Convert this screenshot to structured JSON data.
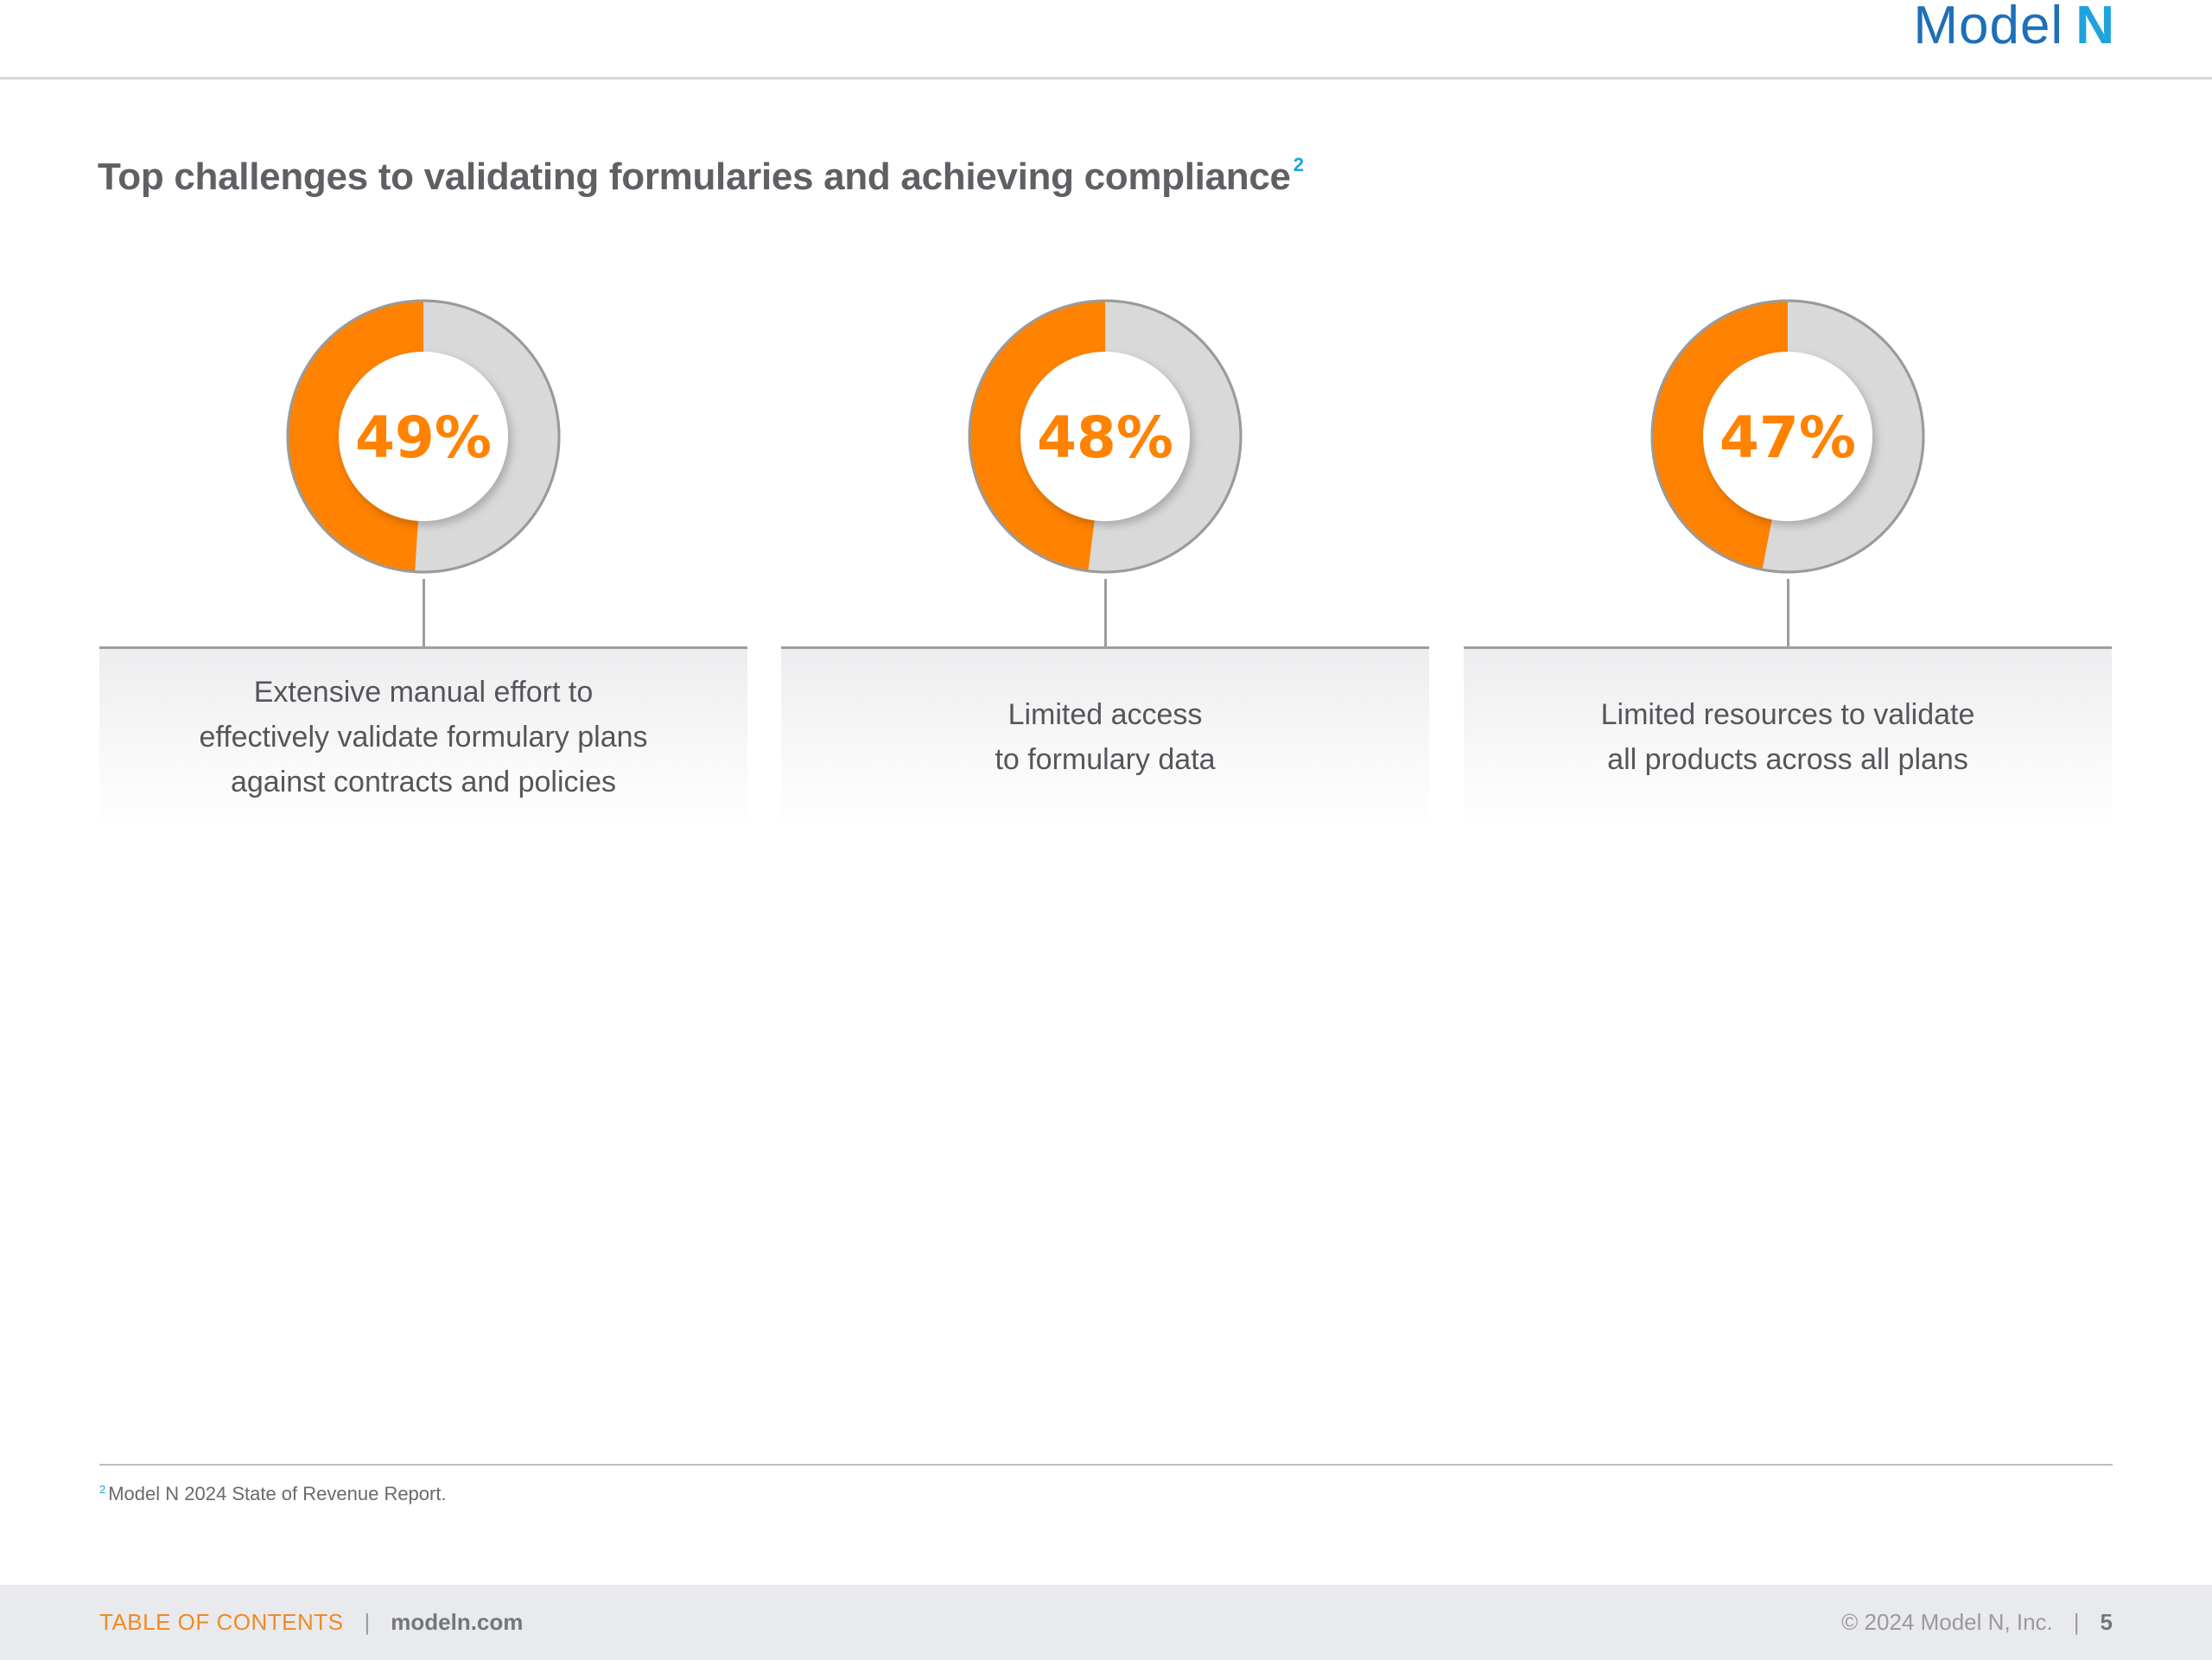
{
  "header": {
    "logo_text": "Model",
    "logo_mark": "N"
  },
  "title": {
    "text": "Top challenges to validating formularies and achieving compliance",
    "footnote_ref": "2"
  },
  "colors": {
    "accent": "#ff8200",
    "track": "#d9d9d9",
    "brand_blue": "#1d6fb8"
  },
  "chart_data": [
    {
      "type": "pie",
      "value": 49,
      "label": "49%",
      "caption": "Extensive manual effort to\neffectively validate formulary plans\nagainst contracts and policies"
    },
    {
      "type": "pie",
      "value": 48,
      "label": "48%",
      "caption": "Limited access\nto formulary data"
    },
    {
      "type": "pie",
      "value": 47,
      "label": "47%",
      "caption": "Limited resources to validate\nall products across all plans"
    }
  ],
  "footnote": {
    "ref": "2",
    "text": "Model N 2024 State of Revenue Report."
  },
  "footer": {
    "toc": "TABLE OF CONTENTS",
    "separator": "|",
    "site": "modeln.com",
    "copyright": "© 2024 Model N, Inc.",
    "page": "5"
  }
}
